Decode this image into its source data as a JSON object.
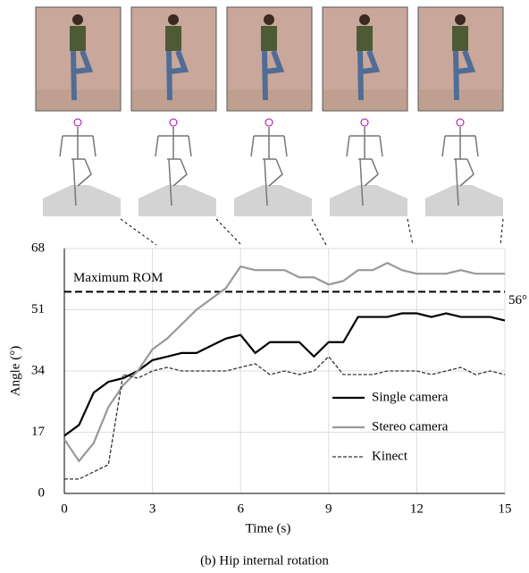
{
  "chart_data": {
    "type": "line",
    "xlabel": "Time (s)",
    "ylabel": "Angle (°)",
    "caption": "(b) Hip internal rotation",
    "x": [
      0,
      0.5,
      1,
      1.5,
      2,
      2.5,
      3,
      3.5,
      4,
      4.5,
      5,
      5.5,
      6,
      6.5,
      7,
      7.5,
      8,
      8.5,
      9,
      9.5,
      10,
      10.5,
      11,
      11.5,
      12,
      12.5,
      13,
      13.5,
      14,
      14.5,
      15
    ],
    "series": [
      {
        "name": "Single camera",
        "color": "#000000",
        "style": "solid",
        "values": [
          16,
          19,
          28,
          31,
          32,
          34,
          37,
          38,
          39,
          39,
          41,
          43,
          44,
          39,
          42,
          42,
          42,
          38,
          42,
          42,
          49,
          49,
          49,
          50,
          50,
          49,
          50,
          49,
          49,
          49,
          48
        ]
      },
      {
        "name": "Stereo camera",
        "color": "#999999",
        "style": "solid",
        "values": [
          15,
          9,
          14,
          24,
          30,
          34,
          40,
          43,
          47,
          51,
          54,
          57,
          63,
          62,
          62,
          62,
          60,
          60,
          58,
          59,
          62,
          62,
          64,
          62,
          61,
          61,
          61,
          62,
          61,
          61,
          61
        ]
      },
      {
        "name": "Kinect",
        "color": "#333333",
        "style": "dashed",
        "values": [
          4,
          4,
          6,
          8,
          33,
          32,
          34,
          35,
          34,
          34,
          34,
          34,
          35,
          36,
          33,
          34,
          33,
          34,
          38,
          33,
          33,
          33,
          34,
          34,
          34,
          33,
          34,
          35,
          33,
          34,
          33
        ]
      }
    ],
    "reference_line": {
      "value": 56,
      "label": "56°",
      "text": "Maximum ROM"
    },
    "xlim": [
      0,
      15
    ],
    "xticks": [
      0,
      3,
      6,
      9,
      12,
      15
    ],
    "ylim": [
      0,
      68
    ],
    "yticks": [
      0,
      17,
      34,
      51,
      68
    ],
    "grid": true,
    "legend": "right"
  }
}
